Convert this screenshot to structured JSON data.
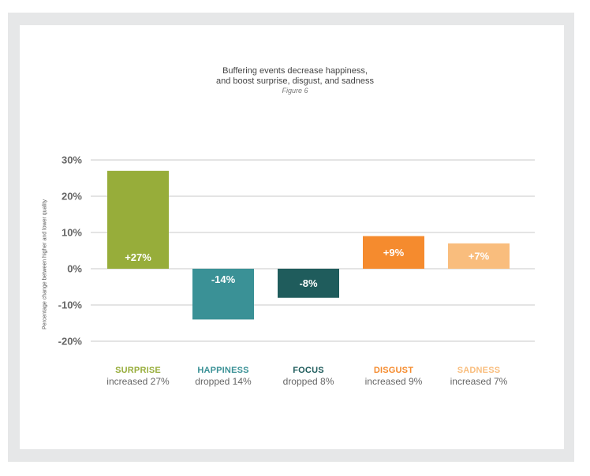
{
  "chart_data": {
    "type": "bar",
    "title": "Buffering events decrease happiness,\nand boost surprise, disgust, and sadness",
    "title_lines": [
      "Buffering events decrease happiness,",
      "and boost surprise, disgust, and sadness"
    ],
    "subtitle": "Figure 6",
    "ylabel": "Percentage change between higher and lower quality",
    "xlabel": "",
    "ylim": [
      -20,
      30
    ],
    "yticks": [
      30,
      20,
      10,
      0,
      -10,
      -20
    ],
    "ytick_labels": [
      "30%",
      "20%",
      "10%",
      "0%",
      "-10%",
      "-20%"
    ],
    "grid": true,
    "categories": [
      "SURPRISE",
      "HAPPINESS",
      "FOCUS",
      "DISGUST",
      "SADNESS"
    ],
    "values": [
      27,
      -14,
      -8,
      9,
      7
    ],
    "value_labels": [
      "+27%",
      "-14%",
      "-8%",
      "+9%",
      "+7%"
    ],
    "descriptions": [
      "increased 27%",
      "dropped 14%",
      "dropped 8%",
      "increased 9%",
      "increased 7%"
    ],
    "colors": [
      "#97ad3a",
      "#3a9196",
      "#1f5c5c",
      "#f58b2e",
      "#f9bd7d"
    ],
    "grid_color": "#c8c8c8",
    "tick_label_color": "#666666"
  }
}
